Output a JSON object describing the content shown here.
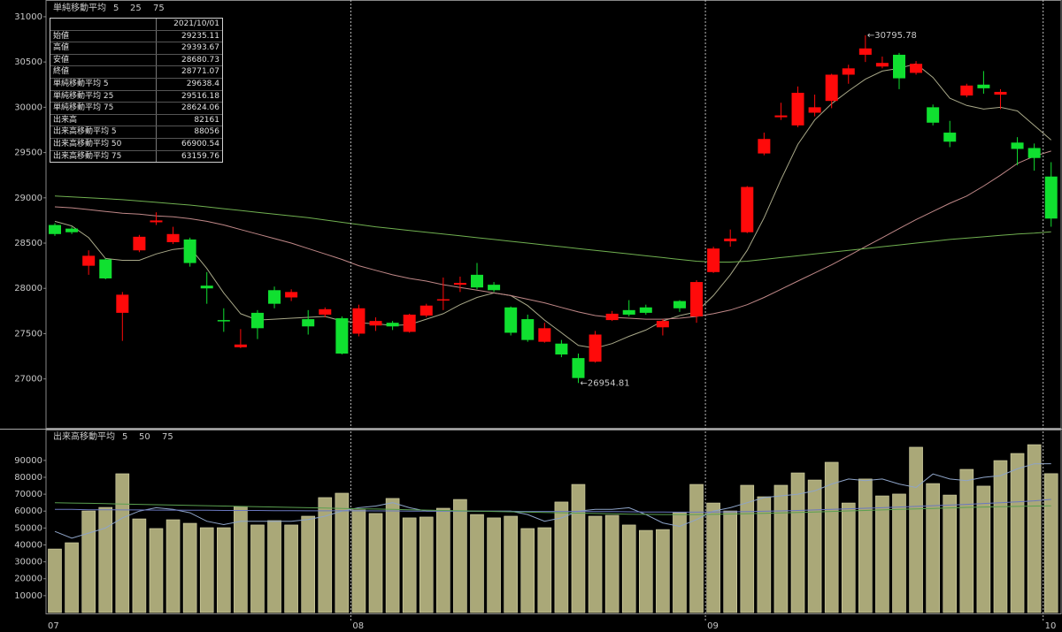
{
  "chart_data": [
    {
      "type": "candlestick",
      "legend_title": "単純移動平均",
      "up_color": "#ff0a0a",
      "down_color": "#10e030",
      "ylim": [
        26460,
        31175
      ],
      "yticks": [
        27000,
        27500,
        28000,
        28500,
        29000,
        29500,
        30000,
        30500,
        31000
      ],
      "open": [
        28700,
        28660,
        28250,
        28320,
        27730,
        28420,
        28730,
        28510,
        28540,
        28030,
        27650,
        27350,
        27730,
        27980,
        27900,
        27660,
        27710,
        27670,
        27500,
        27590,
        27620,
        27520,
        27700,
        27870,
        28040,
        28150,
        28040,
        27790,
        27660,
        27410,
        27390,
        27230,
        27190,
        27650,
        27760,
        27790,
        27570,
        27860,
        27690,
        28180,
        28520,
        28620,
        29490,
        29890,
        29800,
        29940,
        30070,
        30360,
        30580,
        30450,
        30580,
        30380,
        30000,
        29720,
        30130,
        30250,
        30140,
        29610,
        29550,
        29235.11
      ],
      "high": [
        28720,
        28680,
        28420,
        28330,
        27960,
        28590,
        28840,
        28680,
        28560,
        28180,
        27780,
        27550,
        27760,
        28020,
        27990,
        27760,
        27790,
        27690,
        27820,
        27680,
        27640,
        27720,
        27830,
        28120,
        28130,
        28280,
        28070,
        27800,
        27710,
        27620,
        27430,
        27280,
        27530,
        27750,
        27870,
        27820,
        27660,
        27870,
        28090,
        28460,
        28650,
        29130,
        29720,
        30050,
        30230,
        30140,
        30370,
        30470,
        30795.78,
        30560,
        30600,
        30510,
        30030,
        29850,
        30260,
        30400,
        30200,
        29670,
        29600,
        29393.67
      ],
      "low": [
        28580,
        28600,
        28150,
        28100,
        27420,
        28400,
        28700,
        28490,
        28240,
        27830,
        27520,
        27340,
        27440,
        27780,
        27860,
        27490,
        27680,
        27270,
        27470,
        27530,
        27540,
        27510,
        27680,
        27760,
        27960,
        27990,
        27960,
        27480,
        27410,
        27400,
        27240,
        26954.81,
        27180,
        27640,
        27690,
        27710,
        27480,
        27740,
        27620,
        28170,
        28460,
        28610,
        29470,
        29860,
        29780,
        29900,
        29990,
        30260,
        30500,
        30430,
        30200,
        30360,
        29800,
        29560,
        30110,
        30150,
        29980,
        29360,
        29300,
        28680.73
      ],
      "close": [
        28600,
        28620,
        28360,
        28110,
        27930,
        28570,
        28750,
        28600,
        28280,
        28000,
        27640,
        27380,
        27560,
        27830,
        27960,
        27580,
        27770,
        27280,
        27780,
        27640,
        27580,
        27710,
        27810,
        27880,
        28060,
        28010,
        27980,
        27510,
        27430,
        27560,
        27270,
        27010,
        27490,
        27720,
        27710,
        27730,
        27640,
        27780,
        28070,
        28440,
        28550,
        29120,
        29650,
        29910,
        30160,
        30000,
        30360,
        30430,
        30650,
        30490,
        30320,
        30480,
        29830,
        29620,
        30240,
        30210,
        30170,
        29540,
        29440,
        28771.07
      ],
      "series": [
        {
          "name": "5",
          "color": "#a8a888",
          "values": [
            28740,
            28690,
            28560,
            28330,
            28310,
            28310,
            28380,
            28430,
            28450,
            28220,
            27950,
            27720,
            27650,
            27660,
            27670,
            27680,
            27690,
            27640,
            27620,
            27610,
            27590,
            27600,
            27660,
            27720,
            27820,
            27900,
            27950,
            27920,
            27810,
            27650,
            27510,
            27370,
            27340,
            27390,
            27470,
            27540,
            27640,
            27700,
            27740,
            27920,
            28150,
            28420,
            28780,
            29200,
            29590,
            29860,
            30040,
            30180,
            30310,
            30400,
            30430,
            30480,
            30330,
            30100,
            30020,
            29980,
            30000,
            29960,
            29800,
            29638.4
          ]
        },
        {
          "name": "25",
          "color": "#c08888",
          "values": [
            28900,
            28890,
            28870,
            28850,
            28830,
            28820,
            28800,
            28790,
            28770,
            28740,
            28700,
            28650,
            28600,
            28550,
            28500,
            28440,
            28380,
            28320,
            28250,
            28200,
            28150,
            28110,
            28080,
            28040,
            28010,
            27980,
            27950,
            27920,
            27880,
            27840,
            27790,
            27740,
            27700,
            27680,
            27670,
            27660,
            27660,
            27670,
            27690,
            27720,
            27760,
            27820,
            27900,
            27990,
            28080,
            28170,
            28260,
            28360,
            28460,
            28560,
            28660,
            28760,
            28850,
            28940,
            29020,
            29130,
            29250,
            29380,
            29460,
            29516.18
          ]
        },
        {
          "name": "75",
          "color": "#70b050",
          "values": [
            29020,
            29010,
            29000,
            28990,
            28980,
            28965,
            28950,
            28935,
            28920,
            28900,
            28880,
            28860,
            28840,
            28820,
            28800,
            28780,
            28755,
            28730,
            28705,
            28680,
            28660,
            28640,
            28620,
            28600,
            28580,
            28560,
            28540,
            28520,
            28500,
            28480,
            28460,
            28440,
            28420,
            28400,
            28380,
            28360,
            28340,
            28320,
            28300,
            28290,
            28290,
            28300,
            28320,
            28340,
            28360,
            28380,
            28400,
            28420,
            28440,
            28460,
            28480,
            28500,
            28520,
            28540,
            28555,
            28570,
            28585,
            28600,
            28610,
            28624.06
          ]
        }
      ],
      "annotations": [
        {
          "text": "←30795.78",
          "x": 48,
          "y": 30795.78,
          "color": "#ff3030"
        },
        {
          "text": "←26954.81",
          "x": 31,
          "y": 26954.81,
          "color": "#20e040"
        }
      ]
    },
    {
      "type": "bar",
      "legend_title": "出来高移動平均",
      "color": "#aaa878",
      "categories": [
        "07",
        null,
        null,
        null,
        null,
        null,
        null,
        null,
        null,
        null,
        null,
        null,
        null,
        null,
        null,
        null,
        null,
        null,
        "08",
        null,
        null,
        null,
        null,
        null,
        null,
        null,
        null,
        null,
        null,
        null,
        null,
        null,
        null,
        null,
        null,
        null,
        null,
        null,
        null,
        "09",
        null,
        null,
        null,
        null,
        null,
        null,
        null,
        null,
        null,
        null,
        null,
        null,
        null,
        null,
        null,
        null,
        null,
        null,
        null,
        "10"
      ],
      "ylim": [
        0,
        107700
      ],
      "yticks": [
        10000,
        20000,
        30000,
        40000,
        50000,
        60000,
        70000,
        80000,
        90000
      ],
      "values": [
        37600,
        41300,
        60100,
        62200,
        82100,
        55400,
        49700,
        54900,
        52800,
        50200,
        50200,
        62700,
        51800,
        54400,
        51800,
        57000,
        68000,
        70600,
        60700,
        58600,
        67500,
        56000,
        56500,
        61700,
        66900,
        58000,
        56000,
        57000,
        49700,
        50200,
        65400,
        75800,
        57000,
        57500,
        51800,
        48600,
        49100,
        59100,
        75800,
        64800,
        60100,
        75300,
        68500,
        75300,
        82600,
        78400,
        88900,
        64800,
        79000,
        69000,
        70100,
        97800,
        76300,
        69500,
        84700,
        74800,
        89900,
        94100,
        99300,
        82161
      ],
      "series": [
        {
          "name": "5",
          "color": "#8ea4c8",
          "values": [
            48000,
            44000,
            47000,
            50000,
            56000,
            60000,
            62000,
            61000,
            59000,
            54000,
            52000,
            54000,
            54000,
            54000,
            54000,
            55000,
            57000,
            60000,
            62000,
            63000,
            65000,
            62000,
            60000,
            60000,
            60000,
            60000,
            60000,
            60000,
            58000,
            54000,
            56000,
            60000,
            61000,
            61000,
            62000,
            58000,
            53000,
            51000,
            55000,
            60000,
            62000,
            65000,
            68000,
            69000,
            70000,
            72000,
            76000,
            79000,
            78000,
            79000,
            76000,
            74000,
            82000,
            79000,
            78000,
            80000,
            81000,
            85000,
            88000,
            88056
          ]
        },
        {
          "name": "50",
          "color": "#6a78c0",
          "values": [
            61000,
            61000,
            60800,
            60800,
            60700,
            60700,
            60600,
            60600,
            60500,
            60500,
            60400,
            60400,
            60400,
            60300,
            60300,
            60200,
            60200,
            60200,
            60200,
            60100,
            60100,
            60000,
            60000,
            60000,
            60000,
            59900,
            59900,
            59900,
            59800,
            59800,
            59800,
            59800,
            59700,
            59700,
            59600,
            59500,
            59500,
            59400,
            59400,
            59500,
            59600,
            59700,
            59900,
            60100,
            60400,
            60700,
            61000,
            61400,
            61700,
            62000,
            62400,
            62800,
            63200,
            63600,
            64000,
            64500,
            65000,
            65500,
            66100,
            66900.54
          ]
        },
        {
          "name": "75",
          "color": "#5aa050",
          "values": [
            65000,
            64800,
            64600,
            64400,
            64200,
            64000,
            63800,
            63600,
            63400,
            63200,
            63000,
            62800,
            62600,
            62400,
            62200,
            62000,
            61800,
            61600,
            61400,
            61200,
            61000,
            60800,
            60600,
            60400,
            60200,
            60000,
            59800,
            59600,
            59400,
            59200,
            59000,
            58800,
            58600,
            58400,
            58200,
            58100,
            58000,
            58000,
            58000,
            58100,
            58300,
            58500,
            58700,
            58900,
            59200,
            59500,
            59800,
            60100,
            60400,
            60700,
            61000,
            61300,
            61600,
            61900,
            62200,
            62400,
            62600,
            62800,
            63000,
            63159.76
          ]
        }
      ]
    }
  ],
  "info_box": {
    "date": "2021/10/01",
    "rows": [
      {
        "label": "始値",
        "value": "29235.11"
      },
      {
        "label": "高値",
        "value": "29393.67"
      },
      {
        "label": "安値",
        "value": "28680.73"
      },
      {
        "label": "終値",
        "value": "28771.07"
      },
      {
        "label": "単純移動平均 5",
        "value": "29638.4"
      },
      {
        "label": "単純移動平均 25",
        "value": "29516.18"
      },
      {
        "label": "単純移動平均 75",
        "value": "28624.06"
      },
      {
        "label": "出来高",
        "value": "82161"
      },
      {
        "label": "出来高移動平均 5",
        "value": "88056"
      },
      {
        "label": "出来高移動平均 50",
        "value": "66900.54"
      },
      {
        "label": "出来高移動平均 75",
        "value": "63159.76"
      }
    ]
  }
}
